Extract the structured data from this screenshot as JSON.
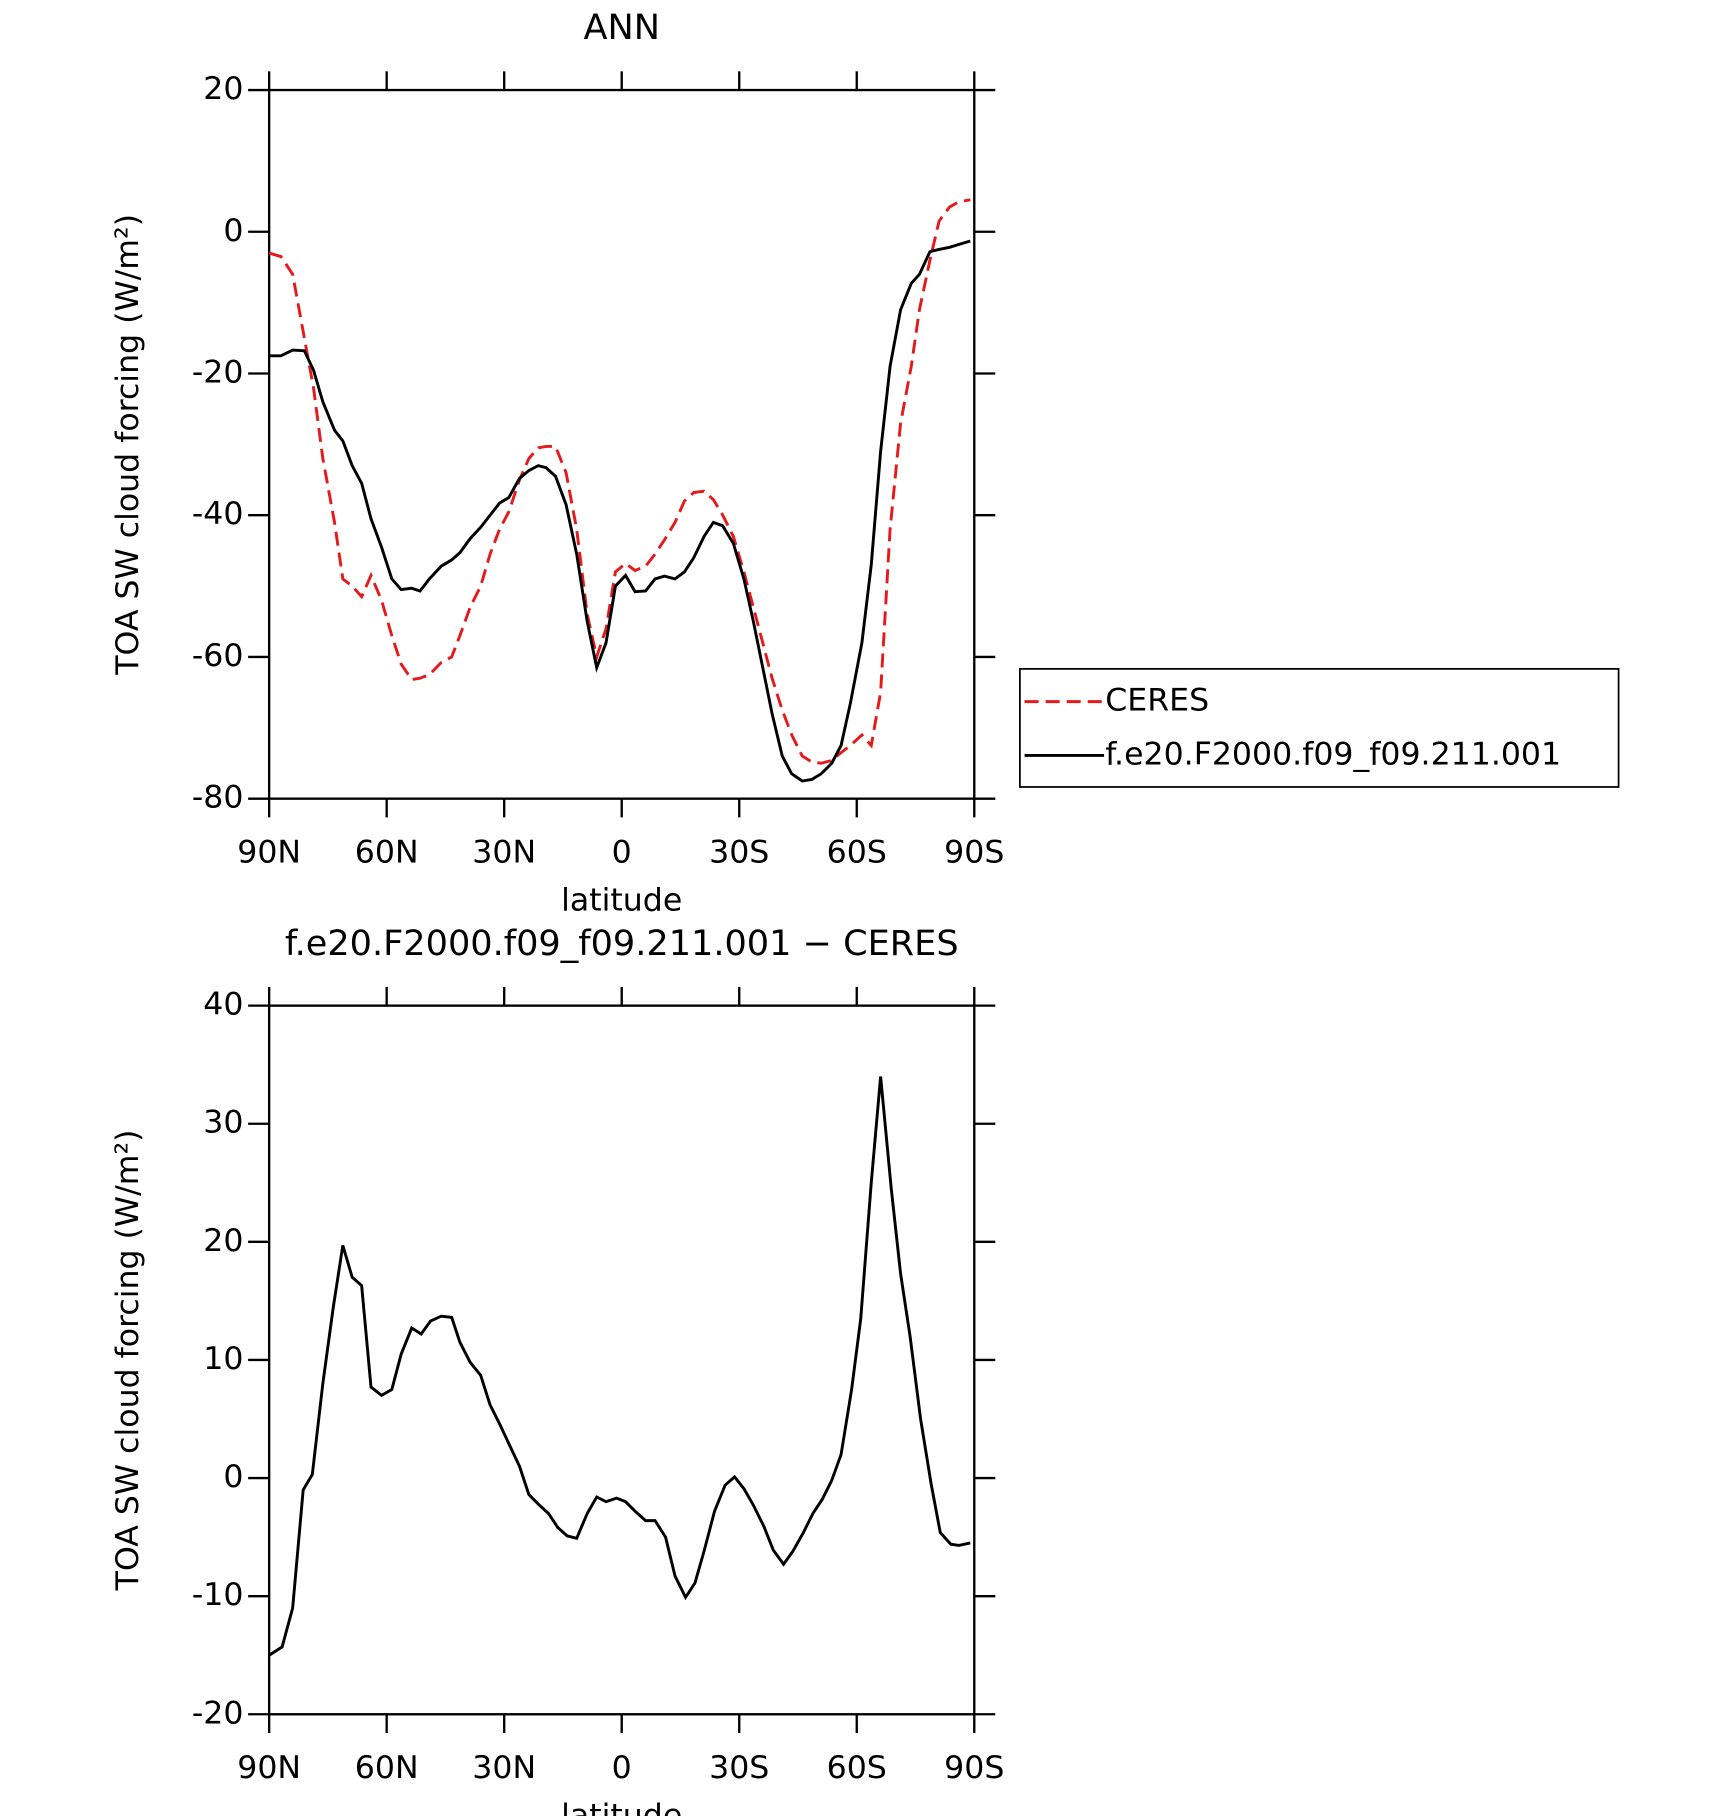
{
  "chart_data": [
    {
      "type": "line",
      "title": "ANN",
      "ylabel": "TOA SW cloud forcing (W/m²)",
      "xlabel": "latitude",
      "xlim": [
        90,
        -90
      ],
      "xticks": [
        {
          "value": 90,
          "label": "90N"
        },
        {
          "value": 60,
          "label": "60N"
        },
        {
          "value": 30,
          "label": "30N"
        },
        0,
        {
          "value": -30,
          "label": "30S"
        },
        {
          "value": -60,
          "label": "60S"
        },
        {
          "value": -90,
          "label": "90S"
        }
      ],
      "ylim": [
        -80,
        20
      ],
      "yticks": [
        -80,
        -60,
        -40,
        -20,
        0,
        20
      ],
      "legend": "right",
      "x": [
        90,
        87,
        84,
        81,
        78.7,
        76.3,
        73.3,
        71.2,
        68.8,
        66.4,
        64,
        61.3,
        58.7,
        56.3,
        53.6,
        51.5,
        49.1,
        46.1,
        43.4,
        41.3,
        38.7,
        36,
        33.6,
        31.2,
        28.8,
        26.1,
        23.7,
        21.3,
        19.3,
        16.9,
        14.2,
        11.5,
        8.8,
        6.4,
        4,
        1.6,
        -1,
        -3.4,
        -6.1,
        -8.5,
        -10.9,
        -13.6,
        -16,
        -18.4,
        -21,
        -23.4,
        -25.8,
        -28.5,
        -31.2,
        -33.6,
        -36,
        -38.4,
        -41,
        -43.4,
        -46.1,
        -48.5,
        -50.9,
        -53.6,
        -56,
        -58.4,
        -61.3,
        -63.7,
        -66.1,
        -68.5,
        -71.2,
        -73.9,
        -76,
        -78.7,
        -81,
        -83.7,
        -86,
        -89
      ],
      "series": [
        {
          "name": "CERES",
          "color": "#e41a1c",
          "dash": true,
          "values": [
            -3,
            -3.5,
            -6,
            -15,
            -22,
            -32,
            -41,
            -49,
            -50,
            -51.5,
            -48.5,
            -52,
            -57,
            -61,
            -63.2,
            -63,
            -62.5,
            -60.8,
            -60,
            -57,
            -53,
            -50,
            -45.5,
            -42,
            -39.5,
            -35,
            -32,
            -30.5,
            -30.3,
            -30.3,
            -34,
            -42,
            -54,
            -60,
            -56,
            -48,
            -46.8,
            -47.8,
            -47.2,
            -45.5,
            -43.5,
            -41,
            -38,
            -36.8,
            -36.6,
            -37.8,
            -40,
            -43,
            -48,
            -53,
            -58,
            -63,
            -67.5,
            -71,
            -74,
            -74.8,
            -75,
            -74.6,
            -73.5,
            -72.5,
            -71,
            -72.5,
            -65,
            -42,
            -27,
            -19,
            -11,
            -4,
            1.5,
            3.5,
            4.2,
            4.5
          ]
        },
        {
          "name": "f.e20.F2000.f09_f09.211.001",
          "color": "#000000",
          "values": [
            -17.5,
            -17.5,
            -16.7,
            -16.8,
            -19.5,
            -24,
            -28,
            -29.5,
            -33,
            -35.5,
            -40.5,
            -44.5,
            -49,
            -50.5,
            -50.3,
            -50.7,
            -49,
            -47.2,
            -46.3,
            -45.3,
            -43.3,
            -41.7,
            -40,
            -38.3,
            -37.5,
            -34.8,
            -33.7,
            -33,
            -33.3,
            -34.5,
            -38.5,
            -45.5,
            -55,
            -61.5,
            -58,
            -50,
            -48.5,
            -50.8,
            -50.7,
            -49,
            -48.6,
            -49,
            -48,
            -46,
            -43,
            -41,
            -41.5,
            -44,
            -49,
            -55,
            -61.5,
            -68,
            -74,
            -76.5,
            -77.5,
            -77.3,
            -76.5,
            -75,
            -72.5,
            -66.5,
            -58,
            -47,
            -31,
            -19,
            -11,
            -7.3,
            -6,
            -2.8,
            -2.5,
            -2.2,
            -1.8,
            -1.3
          ]
        }
      ]
    },
    {
      "type": "line",
      "title": "f.e20.F2000.f09_f09.211.001 − CERES",
      "ylabel": "TOA SW cloud forcing (W/m²)",
      "xlabel": "latitude",
      "xlim": [
        90,
        -90
      ],
      "xticks": [
        {
          "value": 90,
          "label": "90N"
        },
        {
          "value": 60,
          "label": "60N"
        },
        {
          "value": 30,
          "label": "30N"
        },
        0,
        {
          "value": -30,
          "label": "30S"
        },
        {
          "value": -60,
          "label": "60S"
        },
        {
          "value": -90,
          "label": "90S"
        }
      ],
      "ylim": [
        -20,
        40
      ],
      "yticks": [
        -20,
        -10,
        0,
        10,
        20,
        30,
        40
      ],
      "x": [
        90,
        86.7,
        84,
        81.3,
        79,
        76.3,
        73.6,
        71.2,
        68.8,
        66.4,
        64,
        61.3,
        58.7,
        56.3,
        53.6,
        51.2,
        48.8,
        46.1,
        43.4,
        41.3,
        38.7,
        36,
        33.6,
        31.2,
        28.8,
        26.1,
        23.7,
        21.3,
        18.7,
        16.3,
        13.9,
        11.5,
        8.8,
        6.4,
        4,
        1.3,
        -1,
        -3.4,
        -6.1,
        -8.5,
        -11.2,
        -13.6,
        -16.3,
        -18.7,
        -21,
        -23.7,
        -26.4,
        -28.8,
        -31.2,
        -33.6,
        -36.3,
        -38.7,
        -41.3,
        -43.7,
        -46.4,
        -48.8,
        -51.2,
        -53.6,
        -56,
        -58.7,
        -61,
        -63.7,
        -66.1,
        -68.8,
        -71.2,
        -73.6,
        -76.3,
        -79,
        -81.3,
        -84,
        -86.1,
        -89
      ],
      "series": [
        {
          "color": "#000000",
          "values": [
            -15,
            -14.3,
            -11,
            -1,
            0.3,
            8,
            14.5,
            19.7,
            17,
            16.3,
            7.7,
            7,
            7.5,
            10.5,
            12.7,
            12.2,
            13.3,
            13.7,
            13.6,
            11.5,
            9.8,
            8.7,
            6.2,
            4.6,
            2.9,
            1,
            -1.4,
            -2.2,
            -3,
            -4.2,
            -4.9,
            -5.1,
            -3,
            -1.6,
            -2,
            -1.7,
            -2,
            -2.8,
            -3.6,
            -3.6,
            -5,
            -8.3,
            -10.1,
            -8.9,
            -6.2,
            -2.8,
            -0.6,
            0.1,
            -0.9,
            -2.3,
            -4.1,
            -6.1,
            -7.3,
            -6.2,
            -4.6,
            -3,
            -1.8,
            -0.2,
            2,
            7.5,
            13.5,
            25,
            34,
            24.5,
            17.3,
            12,
            5,
            -0.5,
            -4.6,
            -5.6,
            -5.7,
            -5.5
          ]
        }
      ]
    }
  ]
}
